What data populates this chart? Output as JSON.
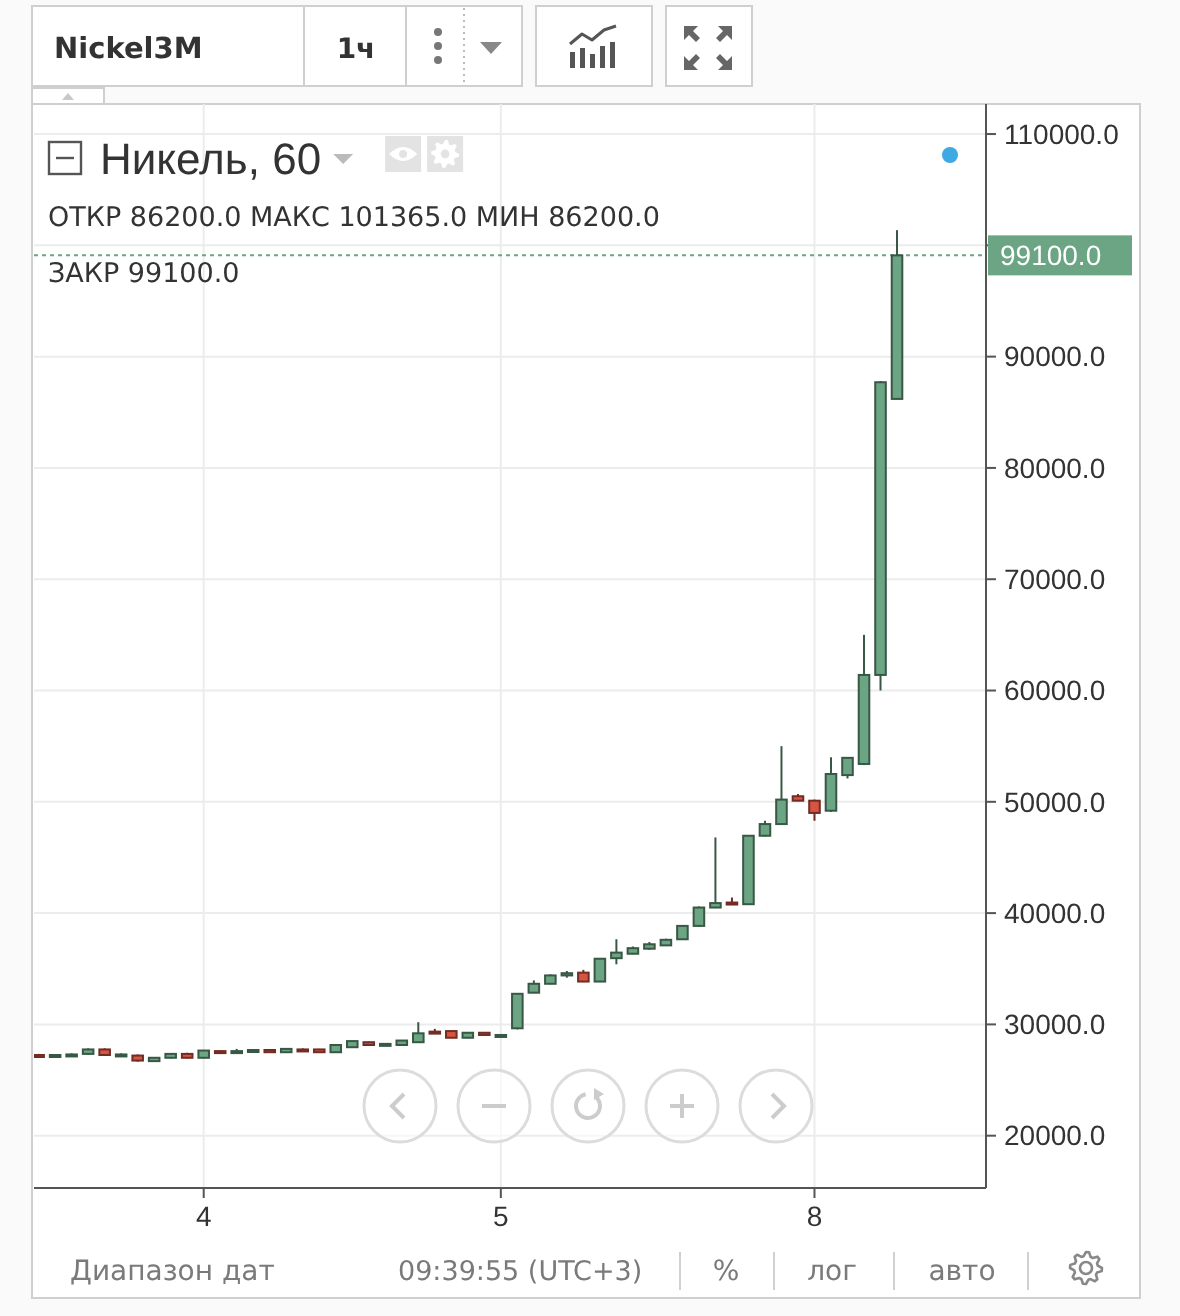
{
  "chart_data": {
    "type": "candlestick",
    "title": "Никель, 60",
    "categories": [
      null,
      null,
      null,
      null,
      null,
      null,
      null,
      null,
      null,
      null,
      "4",
      null,
      null,
      null,
      null,
      null,
      null,
      null,
      null,
      null,
      null,
      null,
      null,
      null,
      null,
      null,
      null,
      null,
      "5",
      null,
      null,
      null,
      null,
      null,
      null,
      null,
      null,
      null,
      null,
      null,
      null,
      null,
      null,
      null,
      null,
      null,
      null,
      "8",
      null,
      null,
      null,
      null,
      null
    ],
    "ohlc": [
      [
        27250,
        27350,
        27150,
        27200
      ],
      [
        27200,
        27300,
        27100,
        27250
      ],
      [
        27250,
        27400,
        27150,
        27300
      ],
      [
        27350,
        27850,
        27300,
        27750
      ],
      [
        27750,
        27850,
        27200,
        27250
      ],
      [
        27250,
        27400,
        27150,
        27300
      ],
      [
        27200,
        27300,
        26650,
        26750
      ],
      [
        26700,
        27050,
        26650,
        27000
      ],
      [
        27000,
        27400,
        26950,
        27350
      ],
      [
        27350,
        27450,
        26950,
        27000
      ],
      [
        27000,
        27700,
        26950,
        27650
      ],
      [
        27600,
        27650,
        27500,
        27550
      ],
      [
        27550,
        27800,
        27450,
        27600
      ],
      [
        27550,
        27750,
        27450,
        27700
      ],
      [
        27700,
        27750,
        27450,
        27500
      ],
      [
        27500,
        27850,
        27450,
        27800
      ],
      [
        27750,
        27850,
        27650,
        27700
      ],
      [
        27750,
        27800,
        27450,
        27500
      ],
      [
        27500,
        28200,
        27450,
        28150
      ],
      [
        27950,
        28550,
        27900,
        28500
      ],
      [
        28400,
        28450,
        28100,
        28150
      ],
      [
        28200,
        28300,
        28150,
        28250
      ],
      [
        28150,
        28600,
        28100,
        28550
      ],
      [
        28400,
        30200,
        28350,
        29200
      ],
      [
        29350,
        29600,
        29250,
        29300
      ],
      [
        29400,
        29450,
        28800,
        28800
      ],
      [
        28800,
        29300,
        28750,
        29250
      ],
      [
        29250,
        29300,
        29000,
        29050
      ],
      [
        29000,
        29100,
        28950,
        29050
      ],
      [
        29650,
        32800,
        29550,
        32750
      ],
      [
        32850,
        33950,
        32800,
        33650
      ],
      [
        33650,
        34500,
        33600,
        34400
      ],
      [
        34400,
        34800,
        34200,
        34600
      ],
      [
        34650,
        34900,
        33800,
        33850
      ],
      [
        33850,
        35950,
        33800,
        35900
      ],
      [
        35950,
        37650,
        35400,
        36450
      ],
      [
        36350,
        37000,
        36300,
        36850
      ],
      [
        36800,
        37400,
        36700,
        37200
      ],
      [
        37100,
        37700,
        37050,
        37600
      ],
      [
        37650,
        38900,
        37600,
        38850
      ],
      [
        38850,
        40600,
        38800,
        40500
      ],
      [
        40500,
        46800,
        40450,
        40900
      ],
      [
        40950,
        41400,
        40750,
        40850
      ],
      [
        40800,
        47000,
        40750,
        46950
      ],
      [
        46950,
        48300,
        46900,
        48000
      ],
      [
        48000,
        55000,
        47950,
        50200
      ],
      [
        50500,
        50700,
        50050,
        50100
      ],
      [
        50100,
        50200,
        48300,
        49000
      ],
      [
        49200,
        54000,
        49100,
        52500
      ],
      [
        52400,
        54000,
        52100,
        53950
      ],
      [
        53400,
        65000,
        53300,
        61400
      ],
      [
        61400,
        87800,
        60000,
        87700
      ],
      [
        86200,
        101365,
        86200,
        99100
      ]
    ],
    "colors": [
      "#d75442",
      "#6ba583",
      "#6ba583",
      "#6ba583",
      "#d75442",
      "#6ba583",
      "#d75442",
      "#6ba583",
      "#6ba583",
      "#d75442",
      "#6ba583",
      "#d75442",
      "#6ba583",
      "#6ba583",
      "#d75442",
      "#6ba583",
      "#d75442",
      "#d75442",
      "#6ba583",
      "#6ba583",
      "#d75442",
      "#6ba583",
      "#6ba583",
      "#6ba583",
      "#d75442",
      "#d75442",
      "#6ba583",
      "#d75442",
      "#6ba583",
      "#6ba583",
      "#6ba583",
      "#6ba583",
      "#6ba583",
      "#d75442",
      "#6ba583",
      "#6ba583",
      "#6ba583",
      "#6ba583",
      "#6ba583",
      "#6ba583",
      "#6ba583",
      "#6ba583",
      "#d75442",
      "#6ba583",
      "#6ba583",
      "#6ba583",
      "#d75442",
      "#d75442",
      "#6ba583",
      "#6ba583",
      "#6ba583",
      "#6ba583",
      "#6ba583"
    ],
    "ylim": [
      15300,
      112700
    ],
    "yticks": [
      {
        "value": 20000,
        "label": "20000.0"
      },
      {
        "value": 30000,
        "label": "30000.0"
      },
      {
        "value": 40000,
        "label": "40000.0"
      },
      {
        "value": 50000,
        "label": "50000.0"
      },
      {
        "value": 60000,
        "label": "60000.0"
      },
      {
        "value": 70000,
        "label": "70000.0"
      },
      {
        "value": 80000,
        "label": "80000.0"
      },
      {
        "value": 90000,
        "label": "90000.0"
      },
      {
        "value": 100000,
        "label": null
      },
      {
        "value": 110000,
        "label": "110000.0"
      }
    ],
    "grid": true,
    "ref_lines": [
      {
        "axis": "y",
        "value": 99100,
        "label": "99100.0",
        "color": "#6ba583",
        "line_style": "dotted"
      }
    ],
    "annotations": [
      "Nickel3M",
      "1ч",
      "ОТКР 86200.0 МАКС 101365.0 МИН 86200.0",
      "ЗАКР 99100.0",
      "Диапазон дат",
      "09:39:55 (UTC+3)",
      "%",
      "лог",
      "авто"
    ]
  }
}
